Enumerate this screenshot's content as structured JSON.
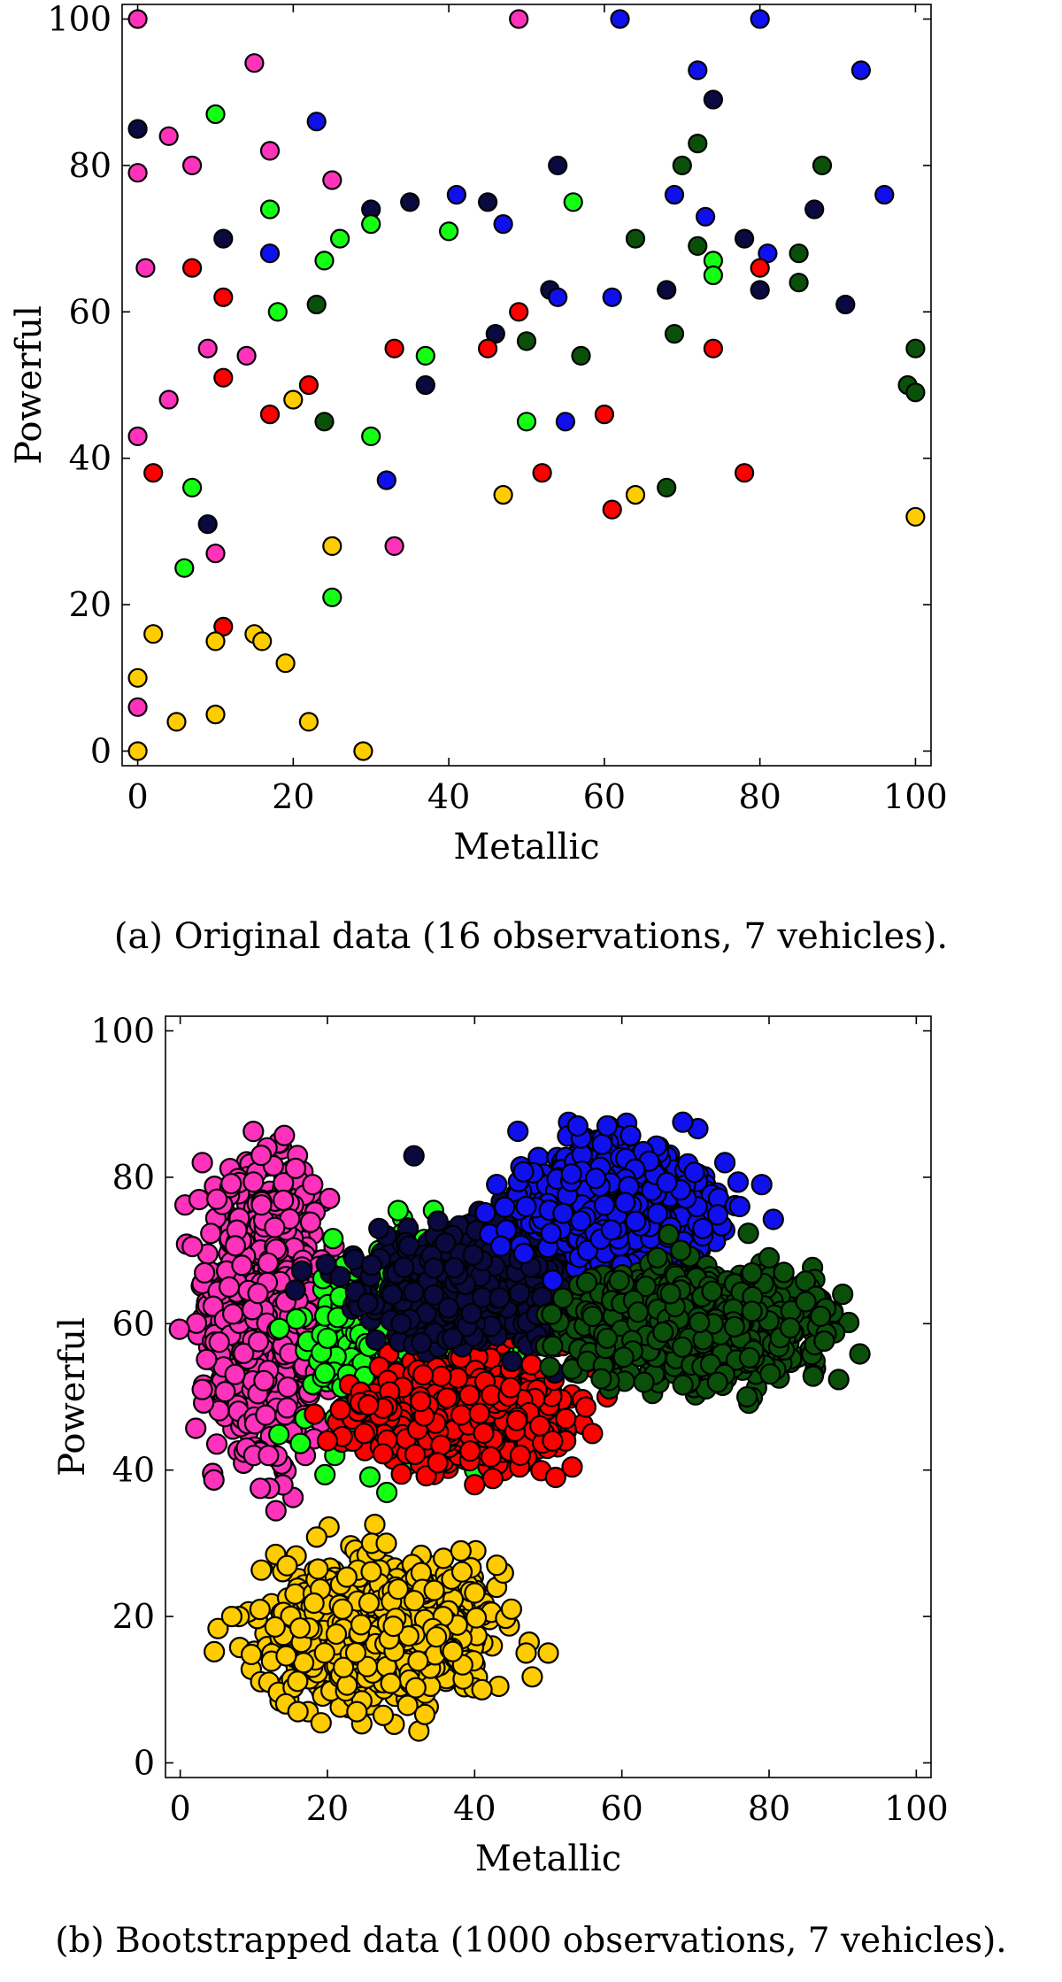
{
  "captions": {
    "a": "(a) Original data (16 observations, 7 vehicles).",
    "b": "(b) Bootstrapped data (1000 observations, 7 vehicles)."
  },
  "chart_data": [
    {
      "type": "scatter",
      "title": "",
      "xlabel": "Metallic",
      "ylabel": "Powerful",
      "xlim": [
        -2,
        102
      ],
      "ylim": [
        -2,
        102
      ],
      "xticks": [
        0,
        20,
        40,
        60,
        80,
        100
      ],
      "yticks": [
        0,
        20,
        40,
        60,
        80,
        100
      ],
      "grid": false,
      "series": [
        {
          "color": "#ff33bb",
          "points": [
            [
              0,
              100
            ],
            [
              49,
              100
            ],
            [
              0,
              79
            ],
            [
              4,
              84
            ],
            [
              7,
              80
            ],
            [
              15,
              94
            ],
            [
              17,
              82
            ],
            [
              25,
              78
            ],
            [
              1,
              66
            ],
            [
              9,
              55
            ],
            [
              14,
              54
            ],
            [
              4,
              48
            ],
            [
              0,
              43
            ],
            [
              10,
              27
            ],
            [
              33,
              28
            ],
            [
              0,
              6
            ]
          ]
        },
        {
          "color": "#0a0a40",
          "points": [
            [
              0,
              85
            ],
            [
              11,
              70
            ],
            [
              30,
              74
            ],
            [
              35,
              75
            ],
            [
              45,
              75
            ],
            [
              54,
              80
            ],
            [
              53,
              63
            ],
            [
              46,
              57
            ],
            [
              37,
              50
            ],
            [
              9,
              31
            ],
            [
              68,
              63
            ],
            [
              74,
              89
            ],
            [
              78,
              70
            ],
            [
              80,
              63
            ],
            [
              87,
              74
            ],
            [
              91,
              61
            ]
          ]
        },
        {
          "color": "#1010ee",
          "points": [
            [
              62,
              100
            ],
            [
              80,
              100
            ],
            [
              23,
              86
            ],
            [
              72,
              93
            ],
            [
              93,
              93
            ],
            [
              41,
              76
            ],
            [
              47,
              72
            ],
            [
              17,
              68
            ],
            [
              54,
              62
            ],
            [
              61,
              62
            ],
            [
              55,
              45
            ],
            [
              32,
              37
            ],
            [
              69,
              76
            ],
            [
              73,
              73
            ],
            [
              81,
              68
            ],
            [
              96,
              76
            ]
          ]
        },
        {
          "color": "#14ff14",
          "points": [
            [
              10,
              87
            ],
            [
              17,
              74
            ],
            [
              26,
              70
            ],
            [
              24,
              67
            ],
            [
              18,
              60
            ],
            [
              30,
              72
            ],
            [
              40,
              71
            ],
            [
              56,
              75
            ],
            [
              37,
              54
            ],
            [
              30,
              43
            ],
            [
              50,
              45
            ],
            [
              7,
              36
            ],
            [
              6,
              25
            ],
            [
              25,
              21
            ],
            [
              74,
              67
            ],
            [
              74,
              65
            ]
          ]
        },
        {
          "color": "#0a500a",
          "points": [
            [
              23,
              61
            ],
            [
              24,
              45
            ],
            [
              50,
              56
            ],
            [
              57,
              54
            ],
            [
              64,
              70
            ],
            [
              72,
              83
            ],
            [
              70,
              80
            ],
            [
              88,
              80
            ],
            [
              72,
              69
            ],
            [
              85,
              68
            ],
            [
              85,
              64
            ],
            [
              69,
              57
            ],
            [
              68,
              36
            ],
            [
              100,
              55
            ],
            [
              99,
              50
            ],
            [
              100,
              49
            ]
          ]
        },
        {
          "color": "#ff0000",
          "points": [
            [
              2,
              38
            ],
            [
              7,
              66
            ],
            [
              11,
              62
            ],
            [
              11,
              51
            ],
            [
              17,
              46
            ],
            [
              22,
              50
            ],
            [
              33,
              55
            ],
            [
              45,
              55
            ],
            [
              49,
              60
            ],
            [
              52,
              38
            ],
            [
              60,
              46
            ],
            [
              61,
              33
            ],
            [
              74,
              55
            ],
            [
              78,
              38
            ],
            [
              80,
              66
            ],
            [
              11,
              17
            ]
          ]
        },
        {
          "color": "#ffcc00",
          "points": [
            [
              0,
              10
            ],
            [
              0,
              0
            ],
            [
              2,
              16
            ],
            [
              5,
              4
            ],
            [
              10,
              15
            ],
            [
              10,
              5
            ],
            [
              15,
              16
            ],
            [
              16,
              15
            ],
            [
              19,
              12
            ],
            [
              20,
              48
            ],
            [
              22,
              4
            ],
            [
              25,
              28
            ],
            [
              29,
              0
            ],
            [
              47,
              35
            ],
            [
              64,
              35
            ],
            [
              100,
              32
            ]
          ]
        }
      ]
    },
    {
      "type": "scatter",
      "title": "",
      "xlabel": "Metallic",
      "ylabel": "Powerful",
      "xlim": [
        -2,
        102
      ],
      "ylim": [
        -2,
        102
      ],
      "xticks": [
        0,
        20,
        40,
        60,
        80,
        100
      ],
      "yticks": [
        0,
        20,
        40,
        60,
        80,
        100
      ],
      "grid": false,
      "observations_per_vehicle": 1000,
      "series": [
        {
          "color": "#ff33bb",
          "center": [
            12,
            63
          ],
          "spread": [
            3.8,
            8.5
          ],
          "extremes": [
            [
              3,
              82
            ],
            [
              11,
              83
            ],
            [
              5,
              77
            ],
            [
              18,
              79
            ],
            [
              3,
              51
            ],
            [
              9,
              43
            ],
            [
              10,
              42
            ],
            [
              12,
              42
            ],
            [
              17,
              42
            ],
            [
              22,
              62
            ]
          ]
        },
        {
          "color": "#ffcc00",
          "center": [
            27,
            18
          ],
          "spread": [
            6.5,
            4.5
          ],
          "extremes": [
            [
              26,
              30
            ],
            [
              28,
              30
            ],
            [
              16,
              7
            ],
            [
              24,
              7
            ],
            [
              8,
              20
            ],
            [
              7,
              20
            ],
            [
              43,
              27
            ],
            [
              45,
              21
            ],
            [
              47,
              15
            ],
            [
              50,
              15
            ],
            [
              41,
              10
            ]
          ]
        },
        {
          "color": "#14ff14",
          "center": [
            31,
            56
          ],
          "spread": [
            5.2,
            5.8
          ],
          "extremes": [
            [
              21,
              42
            ],
            [
              23,
              44
            ],
            [
              40,
              40
            ],
            [
              20,
              58
            ],
            [
              27,
              70
            ],
            [
              30,
              69
            ],
            [
              42,
              64
            ],
            [
              44,
              56
            ],
            [
              49,
              49
            ],
            [
              36,
              47
            ]
          ]
        },
        {
          "color": "#ff0000",
          "center": [
            38,
            48
          ],
          "spread": [
            6.2,
            3.2
          ],
          "extremes": [
            [
              20,
              44
            ],
            [
              25,
              45
            ],
            [
              40,
              38
            ],
            [
              51,
              39
            ],
            [
              56,
              45
            ],
            [
              58,
              50
            ],
            [
              52,
              57
            ],
            [
              33,
              53
            ],
            [
              45,
              58
            ],
            [
              35,
              41
            ]
          ]
        },
        {
          "color": "#0a0a40",
          "center": [
            42,
            66
          ],
          "spread": [
            7.5,
            3.8
          ],
          "extremes": [
            [
              27,
              73
            ],
            [
              26,
              68
            ],
            [
              35,
              74
            ],
            [
              58,
              71
            ],
            [
              62,
              64
            ],
            [
              37,
              58
            ],
            [
              30,
              60
            ],
            [
              49,
              57
            ],
            [
              43,
              79
            ]
          ]
        },
        {
          "color": "#1010ee",
          "center": [
            60,
            76
          ],
          "spread": [
            5.5,
            4.0
          ],
          "extremes": [
            [
              54,
              87
            ],
            [
              58,
              87
            ],
            [
              43,
              79
            ],
            [
              47,
              76
            ],
            [
              74,
              82
            ],
            [
              79,
              79
            ],
            [
              71,
              72
            ],
            [
              71,
              73
            ],
            [
              60,
              68
            ],
            [
              76,
              76
            ]
          ]
        },
        {
          "color": "#0a500a",
          "center": [
            70,
            60
          ],
          "spread": [
            8.0,
            3.5
          ],
          "extremes": [
            [
              58,
              58
            ],
            [
              56,
              61
            ],
            [
              63,
              52
            ],
            [
              77,
              50
            ],
            [
              73,
              52
            ],
            [
              87,
              61
            ],
            [
              85,
              63
            ],
            [
              80,
              69
            ],
            [
              82,
              67
            ],
            [
              68,
              70
            ]
          ]
        }
      ]
    }
  ]
}
